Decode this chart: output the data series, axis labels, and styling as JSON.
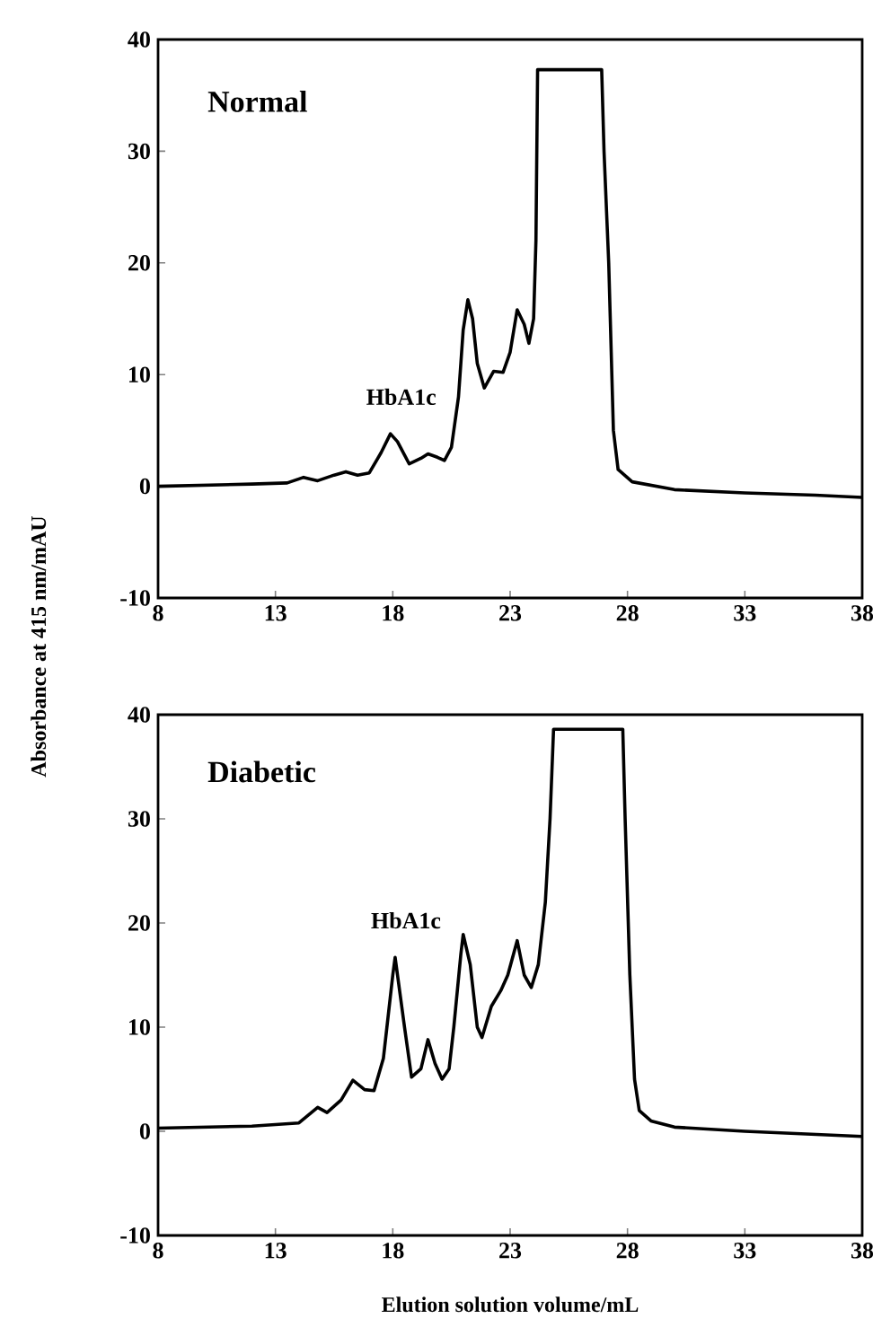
{
  "chart_data": [
    {
      "type": "line",
      "title": "Normal",
      "ylabel": "Absorbance at 415 nm/mAU",
      "color": "#000000",
      "x": [
        8,
        10,
        12,
        13.5,
        14.2,
        14.8,
        15.5,
        16,
        16.5,
        17,
        17.5,
        17.9,
        18.2,
        18.7,
        19.2,
        19.5,
        19.9,
        20.2,
        20.5,
        20.8,
        21,
        21.2,
        21.4,
        21.6,
        21.9,
        22.3,
        22.7,
        23,
        23.3,
        23.6,
        23.8,
        24,
        24.1,
        24.17,
        26.9,
        27.0,
        27.2,
        27.4,
        27.6,
        28.2,
        30,
        33,
        36,
        38
      ],
      "values": [
        0,
        0.1,
        0.2,
        0.3,
        0.8,
        0.5,
        1,
        1.3,
        1,
        1.2,
        3,
        4.7,
        4,
        2,
        2.5,
        2.9,
        2.6,
        2.3,
        3.5,
        8,
        14,
        16.7,
        15,
        11,
        8.8,
        10.3,
        10.2,
        12,
        15.8,
        14.5,
        12.8,
        15,
        22,
        37.3,
        37.3,
        30,
        20,
        5,
        1.5,
        0.4,
        -0.3,
        -0.6,
        -0.8,
        -1
      ],
      "xlim": [
        8,
        38
      ],
      "ylim": [
        -10,
        40
      ],
      "xticks": [
        8,
        13,
        18,
        23,
        28,
        33,
        38
      ],
      "yticks": [
        -10,
        0,
        10,
        20,
        30,
        40
      ],
      "annotations": [
        {
          "text": "HbA1c",
          "x": 17.9,
          "y": 4.7
        }
      ]
    },
    {
      "type": "line",
      "title": "Diabetic",
      "xlabel": "Elution solution volume/mL",
      "color": "#000000",
      "x": [
        8,
        12,
        14,
        14.8,
        15.2,
        15.8,
        16.3,
        16.8,
        17.2,
        17.6,
        18.0,
        18.1,
        18.5,
        18.8,
        19.2,
        19.5,
        19.8,
        20.1,
        20.4,
        20.6,
        20.9,
        21.0,
        21.3,
        21.6,
        21.8,
        22.2,
        22.6,
        22.9,
        23.3,
        23.6,
        23.9,
        24.2,
        24.5,
        24.7,
        24.85,
        27.8,
        27.9,
        28.1,
        28.3,
        28.5,
        29,
        30,
        33,
        38
      ],
      "values": [
        0.3,
        0.5,
        0.8,
        2.3,
        1.8,
        3,
        4.9,
        4,
        3.9,
        7,
        15,
        16.7,
        10,
        5.2,
        6,
        8.8,
        6.5,
        5,
        6,
        10,
        17,
        18.9,
        16,
        10,
        9,
        12,
        13.5,
        15,
        18.3,
        15,
        13.8,
        16,
        22,
        30,
        38.6,
        38.6,
        30,
        15,
        5,
        2,
        1,
        0.4,
        0,
        -0.5
      ],
      "xlim": [
        8,
        38
      ],
      "ylim": [
        -10,
        40
      ],
      "xticks": [
        8,
        13,
        18,
        23,
        28,
        33,
        38
      ],
      "yticks": [
        -10,
        0,
        10,
        20,
        30,
        40
      ],
      "annotations": [
        {
          "text": "HbA1c",
          "x": 18.1,
          "y": 16.7
        }
      ]
    }
  ]
}
